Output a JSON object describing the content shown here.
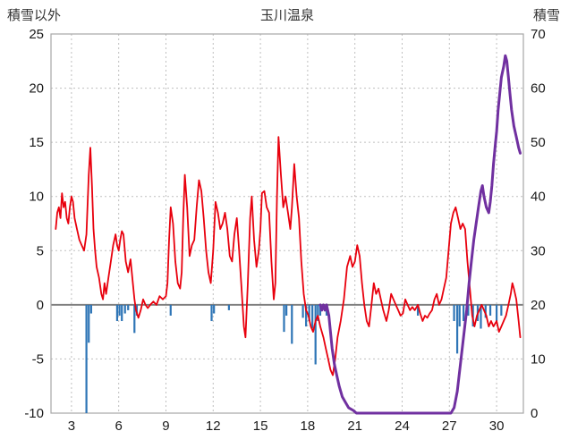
{
  "header": {
    "left_axis_label": "積雪以外",
    "title": "玉川温泉",
    "right_axis_label": "積雪"
  },
  "style": {
    "grid_color": "#bfbfbf",
    "zero_line_color": "#808080",
    "frame_color": "#a6a6a6",
    "tick_text_color": "#1a1a1a",
    "header_text_color": "#333333"
  },
  "chart_data": {
    "type": "line",
    "title": "玉川温泉",
    "grid": true,
    "x_axis": {
      "min": 1.7,
      "max": 31.7,
      "ticks": [
        3,
        6,
        9,
        12,
        15,
        18,
        21,
        24,
        27,
        30
      ]
    },
    "left_axis": {
      "label": "積雪以外",
      "min": -10,
      "max": 25,
      "ticks": [
        25,
        20,
        15,
        10,
        5,
        0,
        -5,
        -10
      ]
    },
    "right_axis": {
      "label": "積雪",
      "min": 0,
      "max": 70,
      "ticks": [
        70,
        60,
        50,
        40,
        30,
        20,
        10,
        0
      ]
    },
    "zero_line": 0,
    "series": [
      {
        "name": "blue-bars",
        "type": "bar",
        "axis": "left",
        "color": "#2e75b6",
        "bar_width": 2.2,
        "points": [
          [
            3.95,
            -10
          ],
          [
            4.1,
            -3.5
          ],
          [
            4.25,
            -0.8
          ],
          [
            5.9,
            -1.5
          ],
          [
            6.05,
            -1.0
          ],
          [
            6.2,
            -1.5
          ],
          [
            6.4,
            -0.8
          ],
          [
            6.6,
            -0.5
          ],
          [
            7.0,
            -2.6
          ],
          [
            7.15,
            -1.0
          ],
          [
            9.3,
            -1.0
          ],
          [
            11.9,
            -1.5
          ],
          [
            12.05,
            -0.8
          ],
          [
            13.0,
            -0.5
          ],
          [
            16.5,
            -2.5
          ],
          [
            16.65,
            -1.0
          ],
          [
            17.0,
            -3.6
          ],
          [
            17.7,
            -1.2
          ],
          [
            17.9,
            -2.0
          ],
          [
            18.1,
            -1.5
          ],
          [
            18.3,
            -2.2
          ],
          [
            18.5,
            -5.5
          ],
          [
            18.65,
            -1.5
          ],
          [
            18.8,
            -1.0
          ],
          [
            19.2,
            -1.0
          ],
          [
            25.0,
            -1.0
          ],
          [
            27.3,
            -1.5
          ],
          [
            27.5,
            -4.5
          ],
          [
            27.65,
            -2.0
          ],
          [
            27.9,
            -1.5
          ],
          [
            28.2,
            -1.0
          ],
          [
            28.5,
            -2.0
          ],
          [
            28.8,
            -1.5
          ],
          [
            29.0,
            -2.2
          ],
          [
            29.3,
            -1.2
          ],
          [
            29.6,
            -1.0
          ],
          [
            30.0,
            -1.5
          ],
          [
            30.3,
            -1.0
          ]
        ]
      },
      {
        "name": "red-line",
        "type": "line",
        "axis": "left",
        "color": "#e8000d",
        "line_width": 1.8,
        "points": [
          [
            2.0,
            7.0
          ],
          [
            2.1,
            8.5
          ],
          [
            2.2,
            9.0
          ],
          [
            2.3,
            8.0
          ],
          [
            2.4,
            10.3
          ],
          [
            2.5,
            9.0
          ],
          [
            2.6,
            9.5
          ],
          [
            2.7,
            8.0
          ],
          [
            2.8,
            7.5
          ],
          [
            2.9,
            9.0
          ],
          [
            3.0,
            10.0
          ],
          [
            3.1,
            9.5
          ],
          [
            3.2,
            8.0
          ],
          [
            3.35,
            7.0
          ],
          [
            3.5,
            6.0
          ],
          [
            3.65,
            5.5
          ],
          [
            3.8,
            5.0
          ],
          [
            3.95,
            6.5
          ],
          [
            4.1,
            12.0
          ],
          [
            4.2,
            14.5
          ],
          [
            4.3,
            11.0
          ],
          [
            4.4,
            7.0
          ],
          [
            4.5,
            5.0
          ],
          [
            4.6,
            3.5
          ],
          [
            4.75,
            2.5
          ],
          [
            4.9,
            1.0
          ],
          [
            5.0,
            0.5
          ],
          [
            5.1,
            2.0
          ],
          [
            5.2,
            1.0
          ],
          [
            5.35,
            2.5
          ],
          [
            5.5,
            4.0
          ],
          [
            5.65,
            5.5
          ],
          [
            5.8,
            6.5
          ],
          [
            5.9,
            5.5
          ],
          [
            6.0,
            5.0
          ],
          [
            6.1,
            6.0
          ],
          [
            6.2,
            6.8
          ],
          [
            6.3,
            6.5
          ],
          [
            6.45,
            4.0
          ],
          [
            6.6,
            3.0
          ],
          [
            6.75,
            4.2
          ],
          [
            6.9,
            2.0
          ],
          [
            7.0,
            0.5
          ],
          [
            7.1,
            -0.5
          ],
          [
            7.25,
            -1.2
          ],
          [
            7.4,
            -0.5
          ],
          [
            7.55,
            0.5
          ],
          [
            7.7,
            0.0
          ],
          [
            7.85,
            -0.3
          ],
          [
            8.0,
            0.0
          ],
          [
            8.2,
            0.3
          ],
          [
            8.4,
            0.0
          ],
          [
            8.6,
            0.8
          ],
          [
            8.8,
            0.5
          ],
          [
            9.0,
            0.8
          ],
          [
            9.1,
            2.0
          ],
          [
            9.2,
            6.0
          ],
          [
            9.3,
            9.0
          ],
          [
            9.45,
            7.5
          ],
          [
            9.6,
            4.0
          ],
          [
            9.75,
            2.0
          ],
          [
            9.9,
            1.5
          ],
          [
            10.0,
            3.0
          ],
          [
            10.1,
            8.0
          ],
          [
            10.2,
            12.0
          ],
          [
            10.35,
            9.0
          ],
          [
            10.5,
            4.5
          ],
          [
            10.65,
            5.5
          ],
          [
            10.8,
            6.0
          ],
          [
            10.95,
            9.0
          ],
          [
            11.1,
            11.5
          ],
          [
            11.25,
            10.5
          ],
          [
            11.4,
            8.0
          ],
          [
            11.55,
            5.0
          ],
          [
            11.7,
            3.0
          ],
          [
            11.85,
            2.0
          ],
          [
            12.0,
            5.0
          ],
          [
            12.15,
            9.5
          ],
          [
            12.3,
            8.5
          ],
          [
            12.45,
            7.0
          ],
          [
            12.6,
            7.5
          ],
          [
            12.75,
            8.5
          ],
          [
            12.9,
            7.0
          ],
          [
            13.05,
            4.5
          ],
          [
            13.2,
            4.0
          ],
          [
            13.35,
            6.5
          ],
          [
            13.5,
            8.0
          ],
          [
            13.65,
            5.0
          ],
          [
            13.8,
            1.5
          ],
          [
            13.95,
            -2.0
          ],
          [
            14.05,
            -3.0
          ],
          [
            14.2,
            2.0
          ],
          [
            14.35,
            8.0
          ],
          [
            14.45,
            10.0
          ],
          [
            14.6,
            6.0
          ],
          [
            14.75,
            3.5
          ],
          [
            14.9,
            5.0
          ],
          [
            15.0,
            7.0
          ],
          [
            15.1,
            10.3
          ],
          [
            15.25,
            10.5
          ],
          [
            15.4,
            9.0
          ],
          [
            15.55,
            8.5
          ],
          [
            15.7,
            4.0
          ],
          [
            15.85,
            0.5
          ],
          [
            15.95,
            2.0
          ],
          [
            16.05,
            10.0
          ],
          [
            16.15,
            15.5
          ],
          [
            16.3,
            12.0
          ],
          [
            16.45,
            9.0
          ],
          [
            16.6,
            10.0
          ],
          [
            16.75,
            8.5
          ],
          [
            16.9,
            7.0
          ],
          [
            17.0,
            9.0
          ],
          [
            17.15,
            13.0
          ],
          [
            17.3,
            10.0
          ],
          [
            17.45,
            8.0
          ],
          [
            17.6,
            4.0
          ],
          [
            17.75,
            1.0
          ],
          [
            17.9,
            -0.5
          ],
          [
            18.05,
            -1.0
          ],
          [
            18.2,
            -2.0
          ],
          [
            18.35,
            -2.5
          ],
          [
            18.5,
            -1.5
          ],
          [
            18.65,
            -1.0
          ],
          [
            18.8,
            -2.0
          ],
          [
            19.0,
            -3.0
          ],
          [
            19.15,
            -4.0
          ],
          [
            19.3,
            -5.0
          ],
          [
            19.45,
            -6.0
          ],
          [
            19.6,
            -6.5
          ],
          [
            19.75,
            -5.0
          ],
          [
            19.9,
            -3.0
          ],
          [
            20.1,
            -1.5
          ],
          [
            20.3,
            0.5
          ],
          [
            20.5,
            3.5
          ],
          [
            20.7,
            4.5
          ],
          [
            20.85,
            3.5
          ],
          [
            21.0,
            4.0
          ],
          [
            21.15,
            5.5
          ],
          [
            21.3,
            4.5
          ],
          [
            21.45,
            2.0
          ],
          [
            21.6,
            0.0
          ],
          [
            21.75,
            -1.5
          ],
          [
            21.9,
            -2.0
          ],
          [
            22.05,
            0.0
          ],
          [
            22.2,
            2.0
          ],
          [
            22.35,
            1.0
          ],
          [
            22.5,
            1.5
          ],
          [
            22.65,
            0.5
          ],
          [
            22.8,
            -0.5
          ],
          [
            23.0,
            -1.5
          ],
          [
            23.15,
            -0.5
          ],
          [
            23.3,
            1.0
          ],
          [
            23.45,
            0.5
          ],
          [
            23.6,
            0.0
          ],
          [
            23.75,
            -0.5
          ],
          [
            23.9,
            -1.0
          ],
          [
            24.05,
            -0.8
          ],
          [
            24.2,
            0.5
          ],
          [
            24.35,
            0.0
          ],
          [
            24.5,
            -0.5
          ],
          [
            24.65,
            -0.2
          ],
          [
            24.8,
            -0.5
          ],
          [
            25.0,
            0.0
          ],
          [
            25.15,
            -0.8
          ],
          [
            25.3,
            -1.5
          ],
          [
            25.45,
            -1.0
          ],
          [
            25.6,
            -1.2
          ],
          [
            25.75,
            -0.8
          ],
          [
            25.9,
            -0.5
          ],
          [
            26.05,
            0.5
          ],
          [
            26.2,
            1.0
          ],
          [
            26.35,
            0.0
          ],
          [
            26.5,
            0.5
          ],
          [
            26.65,
            1.5
          ],
          [
            26.8,
            2.5
          ],
          [
            26.95,
            5.0
          ],
          [
            27.1,
            7.5
          ],
          [
            27.25,
            8.5
          ],
          [
            27.4,
            9.0
          ],
          [
            27.55,
            8.0
          ],
          [
            27.7,
            7.0
          ],
          [
            27.85,
            7.5
          ],
          [
            28.0,
            7.0
          ],
          [
            28.15,
            4.0
          ],
          [
            28.3,
            1.5
          ],
          [
            28.45,
            -1.0
          ],
          [
            28.6,
            -2.0
          ],
          [
            28.75,
            -1.0
          ],
          [
            28.9,
            -0.5
          ],
          [
            29.05,
            0.0
          ],
          [
            29.2,
            -0.5
          ],
          [
            29.35,
            -1.0
          ],
          [
            29.5,
            -2.0
          ],
          [
            29.65,
            -1.5
          ],
          [
            29.8,
            -2.0
          ],
          [
            30.0,
            -1.5
          ],
          [
            30.15,
            -2.5
          ],
          [
            30.3,
            -2.0
          ],
          [
            30.45,
            -1.5
          ],
          [
            30.6,
            -1.0
          ],
          [
            30.75,
            0.0
          ],
          [
            30.9,
            1.0
          ],
          [
            31.0,
            2.0
          ],
          [
            31.1,
            1.5
          ],
          [
            31.25,
            0.5
          ],
          [
            31.4,
            -1.5
          ],
          [
            31.5,
            -3.0
          ]
        ]
      },
      {
        "name": "snow-depth",
        "type": "line",
        "axis": "right",
        "color": "#7030a0",
        "line_width": 3,
        "points": [
          [
            18.8,
            20
          ],
          [
            18.9,
            19
          ],
          [
            19.0,
            20
          ],
          [
            19.1,
            19
          ],
          [
            19.2,
            20
          ],
          [
            19.35,
            18
          ],
          [
            19.45,
            15
          ],
          [
            19.55,
            12
          ],
          [
            19.7,
            9
          ],
          [
            19.85,
            7
          ],
          [
            20.0,
            5
          ],
          [
            20.2,
            3
          ],
          [
            20.4,
            2
          ],
          [
            20.6,
            1
          ],
          [
            20.9,
            0.5
          ],
          [
            21.1,
            0
          ],
          [
            27.1,
            0
          ],
          [
            27.3,
            1
          ],
          [
            27.5,
            4
          ],
          [
            27.7,
            9
          ],
          [
            27.9,
            14
          ],
          [
            28.1,
            19
          ],
          [
            28.25,
            24
          ],
          [
            28.4,
            28
          ],
          [
            28.55,
            32
          ],
          [
            28.7,
            35
          ],
          [
            28.85,
            38
          ],
          [
            29.0,
            41
          ],
          [
            29.1,
            42
          ],
          [
            29.2,
            40
          ],
          [
            29.35,
            38
          ],
          [
            29.5,
            37
          ],
          [
            29.6,
            39
          ],
          [
            29.7,
            42
          ],
          [
            29.8,
            46
          ],
          [
            29.9,
            49
          ],
          [
            30.0,
            52
          ],
          [
            30.1,
            56
          ],
          [
            30.2,
            59
          ],
          [
            30.3,
            62
          ],
          [
            30.45,
            64
          ],
          [
            30.55,
            66
          ],
          [
            30.65,
            65
          ],
          [
            30.75,
            62
          ],
          [
            30.85,
            59
          ],
          [
            30.95,
            56
          ],
          [
            31.1,
            53
          ],
          [
            31.25,
            51
          ],
          [
            31.4,
            49
          ],
          [
            31.5,
            48
          ]
        ]
      }
    ]
  }
}
